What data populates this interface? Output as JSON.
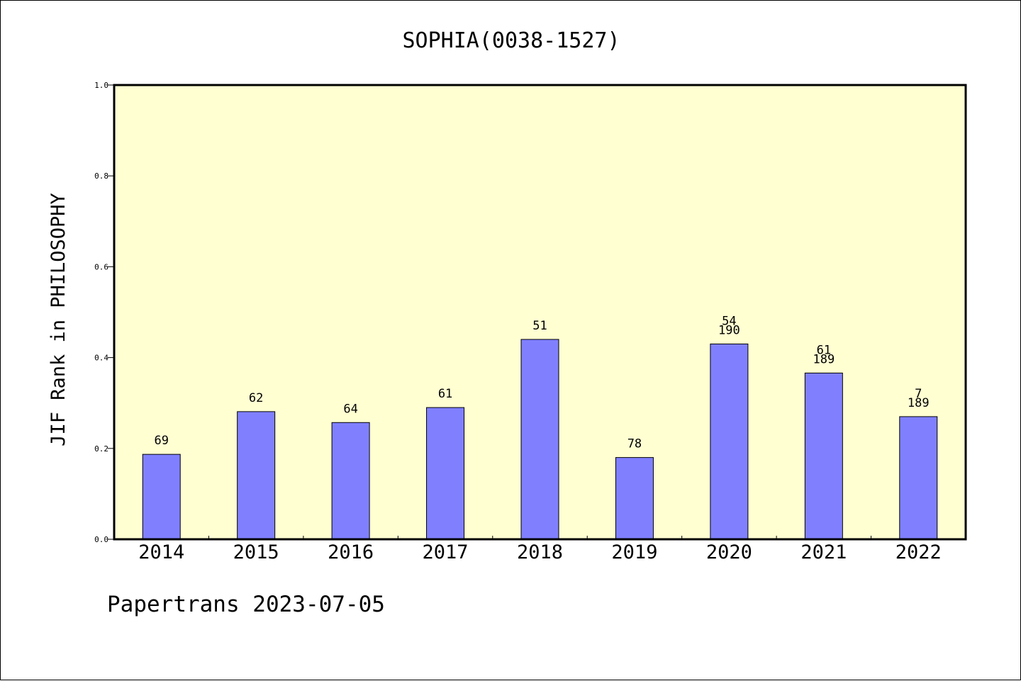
{
  "chart_data": {
    "type": "bar",
    "title": "SOPHIA(0038-1527)",
    "ylabel": "JIF Rank in PHILOSOPHY",
    "xlabel": "",
    "ylim": [
      0,
      1.0
    ],
    "yticks": [
      "0.0",
      "0.2",
      "0.4",
      "0.6",
      "0.8",
      "1.0"
    ],
    "categories": [
      "2014",
      "2015",
      "2016",
      "2017",
      "2018",
      "2019",
      "2020",
      "2021",
      "2022"
    ],
    "values": [
      0.187,
      0.281,
      0.257,
      0.29,
      0.44,
      0.18,
      0.43,
      0.366,
      0.27
    ],
    "data_labels": [
      [
        "69"
      ],
      [
        "62"
      ],
      [
        "64"
      ],
      [
        "61"
      ],
      [
        "51"
      ],
      [
        "78"
      ],
      [
        "54",
        "190"
      ],
      [
        "61",
        "189"
      ],
      [
        "7",
        "189"
      ]
    ],
    "grid": false,
    "legend": "none"
  },
  "footer": "Papertrans 2023-07-05",
  "colors": {
    "plot_background": "#FFFFD2",
    "bar_fill": "#8080FF",
    "bar_stroke": "#000000",
    "axis": "#000000",
    "page_background": "#FFFFFF"
  }
}
